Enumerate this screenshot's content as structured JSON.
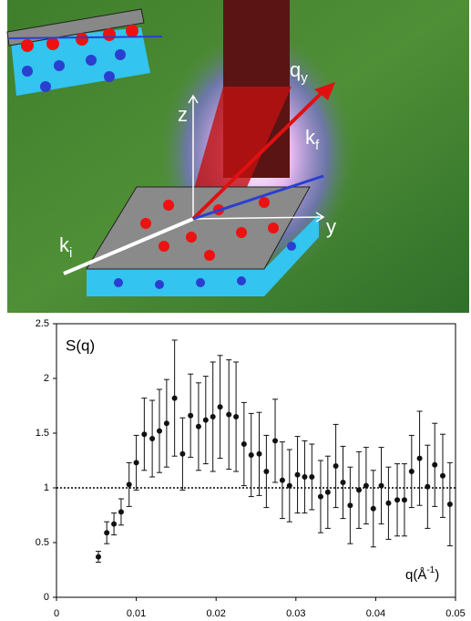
{
  "diagram": {
    "labels": [
      {
        "base": "z"
      },
      {
        "base": "y"
      },
      {
        "base": "q",
        "sub": "y"
      },
      {
        "base": "k",
        "sub": "f"
      },
      {
        "base": "k",
        "sub": "i"
      }
    ]
  },
  "chart_data": {
    "type": "scatter",
    "y_label": "S(q)",
    "x_label": {
      "base": "q(Å",
      "sup": "-1",
      "tail": ")"
    },
    "series": [
      {
        "color": "#111111",
        "x": [
          0.00525,
          0.0063,
          0.0072,
          0.0081,
          0.0091,
          0.01,
          0.011,
          0.012,
          0.0129,
          0.0138,
          0.0148,
          0.0158,
          0.0168,
          0.0178,
          0.0187,
          0.0196,
          0.0205,
          0.0216,
          0.0225,
          0.0235,
          0.0244,
          0.0254,
          0.0263,
          0.0274,
          0.0283,
          0.0292,
          0.0302,
          0.0311,
          0.032,
          0.0331,
          0.034,
          0.035,
          0.0359,
          0.0368,
          0.0379,
          0.0388,
          0.0397,
          0.0407,
          0.0416,
          0.0427,
          0.0436,
          0.0445,
          0.0455,
          0.0465,
          0.0474,
          0.0484,
          0.0493
        ],
        "values": [
          0.37,
          0.59,
          0.67,
          0.78,
          1.03,
          1.23,
          1.49,
          1.45,
          1.52,
          1.59,
          1.82,
          1.31,
          1.66,
          1.56,
          1.62,
          1.65,
          1.74,
          1.67,
          1.65,
          1.4,
          1.3,
          1.31,
          1.15,
          1.43,
          1.07,
          1.02,
          1.12,
          1.1,
          1.1,
          0.92,
          0.96,
          1.2,
          1.05,
          0.84,
          0.98,
          1.02,
          0.81,
          1.02,
          0.86,
          0.89,
          0.89,
          1.15,
          1.27,
          1.01,
          1.21,
          1.11,
          0.85
        ],
        "errors": [
          0.05,
          0.1,
          0.1,
          0.12,
          0.2,
          0.25,
          0.33,
          0.35,
          0.38,
          0.4,
          0.53,
          0.33,
          0.38,
          0.4,
          0.4,
          0.5,
          0.47,
          0.5,
          0.5,
          0.38,
          0.38,
          0.38,
          0.33,
          0.38,
          0.35,
          0.33,
          0.35,
          0.33,
          0.3,
          0.33,
          0.33,
          0.38,
          0.33,
          0.35,
          0.35,
          0.35,
          0.35,
          0.35,
          0.33,
          0.33,
          0.33,
          0.33,
          0.43,
          0.38,
          0.38,
          0.38,
          0.38
        ]
      }
    ],
    "reference_line": 1,
    "xlim": [
      0,
      0.05
    ],
    "xticks": [
      0,
      0.01,
      0.02,
      0.03,
      0.04,
      0.05
    ],
    "ylim": [
      0,
      2.5
    ],
    "yticks": [
      0,
      0.5,
      1,
      1.5,
      2,
      2.5
    ]
  }
}
